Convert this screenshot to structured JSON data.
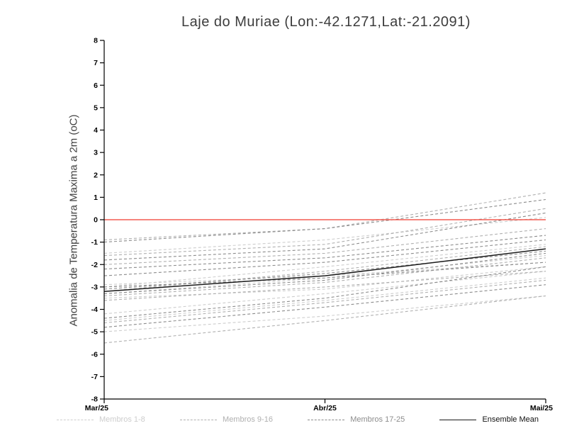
{
  "title": "Laje do Muriae (Lon:-42.1271,Lat:-21.2091)",
  "y_axis_label": "Anomalia de Temperatura Maxima a 2m (oC)",
  "chart_data": {
    "type": "line",
    "title": "Laje do Muriae (Lon:-42.1271,Lat:-21.2091)",
    "xlabel": "",
    "ylabel": "Anomalia de Temperatura Maxima a 2m (oC)",
    "x": [
      0,
      1,
      2
    ],
    "x_tick_labels": [
      "Mar/25",
      "Abr/25",
      "Mai/25"
    ],
    "ylim": [
      -8,
      8
    ],
    "y_ticks": [
      -8,
      -7,
      -6,
      -5,
      -4,
      -3,
      -2,
      -1,
      0,
      1,
      2,
      3,
      4,
      5,
      6,
      7,
      8
    ],
    "grid": "off",
    "legend_position": "bottom",
    "reference_line": {
      "y": 0,
      "color": "#f03b2e",
      "style": "solid"
    },
    "groups": [
      {
        "name": "Membros 1-8",
        "legend_label": "Membros 1-8",
        "color": "#cdcdcd",
        "style": "dashed",
        "series": [
          [
            -3.3,
            -2.6,
            -1.6
          ],
          [
            -4.5,
            -3.6,
            -2.6
          ],
          [
            -2.9,
            -2.5,
            -1.9
          ],
          [
            -3.5,
            -3.1,
            -2.1
          ],
          [
            -5.0,
            -4.3,
            -3.4
          ],
          [
            -1.5,
            -0.9,
            0.1
          ],
          [
            -3.0,
            -2.1,
            -1.1
          ],
          [
            -4.2,
            -3.3,
            -2.3
          ]
        ]
      },
      {
        "name": "Membros 9-16",
        "legend_label": "Membros 9-16",
        "color": "#b0b0b0",
        "style": "dashed",
        "series": [
          [
            -0.9,
            -0.4,
            1.2
          ],
          [
            -2.0,
            -1.5,
            -0.4
          ],
          [
            -3.4,
            -2.8,
            -1.7
          ],
          [
            -4.6,
            -3.7,
            -2.7
          ],
          [
            -3.2,
            -2.3,
            -1.2
          ],
          [
            -5.5,
            -4.5,
            -3.4
          ],
          [
            -1.6,
            -1.1,
            0.5
          ],
          [
            -3.6,
            -3.0,
            -2.3
          ]
        ]
      },
      {
        "name": "Membros 17-25",
        "legend_label": "Membros 17-25",
        "color": "#8c8c8c",
        "style": "dashed",
        "series": [
          [
            -1.0,
            -0.4,
            0.9
          ],
          [
            -2.5,
            -1.9,
            -0.9
          ],
          [
            -3.3,
            -2.7,
            -1.5
          ],
          [
            -4.4,
            -3.5,
            -2.1
          ],
          [
            -3.1,
            -2.4,
            -1.4
          ],
          [
            -2.2,
            -1.7,
            -0.7
          ],
          [
            -4.8,
            -3.9,
            -2.9
          ],
          [
            -3.0,
            -2.6,
            -1.9
          ],
          [
            -1.8,
            -1.3,
            0.3
          ]
        ]
      },
      {
        "name": "Ensemble Mean",
        "legend_label": "Ensemble Mean",
        "color": "#1a1a1a",
        "style": "solid",
        "series": [
          [
            -3.2,
            -2.5,
            -1.3
          ]
        ]
      }
    ]
  }
}
